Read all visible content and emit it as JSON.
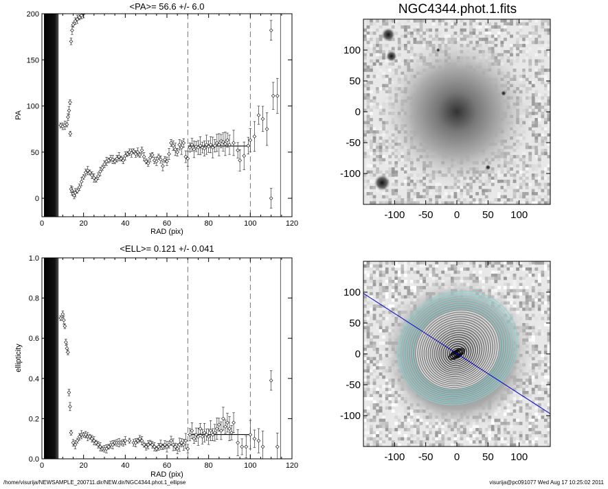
{
  "footer": {
    "path": "/home/visurija/NEWSAMPLE_200711.dir/NEW.dir/NGC4344.phot.1_ellipse",
    "stamp": "visurija@pc091077  Wed Aug 17 10:25:02 2011"
  },
  "chart_data": [
    {
      "type": "scatter",
      "title": "<PA>=  56.6 +/-   6.0",
      "xlabel": "RAD (pix)",
      "ylabel": "PA",
      "xlim": [
        0,
        120
      ],
      "ylim": [
        -20,
        200
      ],
      "xticks": [
        0,
        20,
        40,
        60,
        80,
        100,
        120
      ],
      "yticks": [
        0,
        50,
        100,
        150,
        200
      ],
      "vlines_dashed": [
        70,
        100
      ],
      "vline_solid": 114.5,
      "mean_value": 56.6,
      "mean_range": [
        70,
        100
      ],
      "black_band": [
        1,
        8
      ],
      "points": [
        [
          9,
          79
        ],
        [
          10,
          78
        ],
        [
          11,
          79
        ],
        [
          12,
          80
        ],
        [
          12.5,
          88
        ],
        [
          13,
          95
        ],
        [
          13.5,
          104
        ],
        [
          14,
          170
        ],
        [
          14.5,
          182
        ],
        [
          15,
          188
        ],
        [
          16,
          192
        ],
        [
          17,
          194
        ],
        [
          18,
          196
        ],
        [
          19,
          198
        ],
        [
          20,
          200
        ],
        [
          13.6,
          70
        ],
        [
          14,
          10
        ],
        [
          14.5,
          8
        ],
        [
          15,
          5
        ],
        [
          15.5,
          3
        ],
        [
          16,
          6
        ],
        [
          17,
          8
        ],
        [
          18,
          12
        ],
        [
          19,
          18
        ],
        [
          20,
          23
        ],
        [
          21,
          28
        ],
        [
          22,
          30
        ],
        [
          23,
          28
        ],
        [
          24,
          25
        ],
        [
          25,
          22
        ],
        [
          26,
          20
        ],
        [
          27,
          24
        ],
        [
          28,
          29
        ],
        [
          29,
          33
        ],
        [
          30,
          37
        ],
        [
          31,
          40
        ],
        [
          32,
          41
        ],
        [
          33,
          43
        ],
        [
          34,
          42
        ],
        [
          35,
          40
        ],
        [
          36,
          43
        ],
        [
          37,
          45
        ],
        [
          38,
          43
        ],
        [
          39,
          41
        ],
        [
          40,
          46
        ],
        [
          41,
          48
        ],
        [
          42,
          50
        ],
        [
          43,
          49
        ],
        [
          44,
          51
        ],
        [
          45,
          48
        ],
        [
          46,
          50
        ],
        [
          47,
          47
        ],
        [
          48,
          52
        ],
        [
          49,
          45
        ],
        [
          50,
          40
        ],
        [
          51,
          38
        ],
        [
          52,
          44
        ],
        [
          53,
          47
        ],
        [
          54,
          41
        ],
        [
          55,
          40
        ],
        [
          56,
          45
        ],
        [
          57,
          42
        ],
        [
          58,
          35
        ],
        [
          59,
          42
        ],
        [
          60,
          40
        ],
        [
          61,
          48
        ],
        [
          62,
          60
        ],
        [
          63,
          57
        ],
        [
          64,
          53
        ],
        [
          65,
          50
        ],
        [
          66,
          58
        ],
        [
          67,
          55
        ],
        [
          68,
          60
        ],
        [
          69,
          45
        ],
        [
          70,
          43
        ],
        [
          71,
          55
        ],
        [
          72,
          58
        ],
        [
          73,
          53
        ],
        [
          74,
          56
        ],
        [
          75,
          55
        ],
        [
          76,
          57
        ],
        [
          77,
          55
        ],
        [
          78,
          54
        ],
        [
          79,
          58
        ],
        [
          80,
          56
        ],
        [
          81,
          58
        ],
        [
          82,
          55
        ],
        [
          83,
          57
        ],
        [
          84,
          60
        ],
        [
          85,
          58
        ],
        [
          86,
          62
        ],
        [
          87,
          61
        ],
        [
          88,
          59
        ],
        [
          89,
          63
        ],
        [
          90,
          58
        ],
        [
          92,
          60
        ],
        [
          94,
          52
        ],
        [
          95,
          41
        ],
        [
          97,
          46
        ],
        [
          99,
          57
        ],
        [
          100,
          63
        ],
        [
          102,
          67
        ],
        [
          104,
          90
        ],
        [
          106,
          86
        ],
        [
          108,
          75
        ],
        [
          110,
          182
        ],
        [
          111,
          111
        ],
        [
          113,
          111
        ],
        [
          110,
          0
        ]
      ]
    },
    {
      "type": "scatter",
      "title": "<ELL>= 0.121 +/-  0.041",
      "xlabel": "RAD (pix)",
      "ylabel": "ellipticity",
      "xlim": [
        0,
        120
      ],
      "ylim": [
        0,
        1.0
      ],
      "xticks": [
        0,
        20,
        40,
        60,
        80,
        100,
        120
      ],
      "yticks": [
        0.0,
        0.2,
        0.4,
        0.6,
        0.8,
        1.0
      ],
      "vlines_dashed": [
        70,
        100
      ],
      "vline_solid": 114.5,
      "mean_value": 0.121,
      "mean_range": [
        70,
        100
      ],
      "black_band": [
        1,
        8
      ],
      "points": [
        [
          9,
          0.7
        ],
        [
          10,
          0.72
        ],
        [
          10.5,
          0.69
        ],
        [
          11,
          0.66
        ],
        [
          11.5,
          0.58
        ],
        [
          12,
          0.55
        ],
        [
          12.5,
          0.53
        ],
        [
          13,
          0.33
        ],
        [
          13.5,
          0.26
        ],
        [
          14,
          0.13
        ],
        [
          15,
          0.08
        ],
        [
          16,
          0.07
        ],
        [
          17,
          0.09
        ],
        [
          18,
          0.11
        ],
        [
          19,
          0.12
        ],
        [
          20,
          0.12
        ],
        [
          21,
          0.12
        ],
        [
          22,
          0.11
        ],
        [
          23,
          0.11
        ],
        [
          24,
          0.1
        ],
        [
          25,
          0.09
        ],
        [
          26,
          0.08
        ],
        [
          27,
          0.07
        ],
        [
          28,
          0.06
        ],
        [
          29,
          0.05
        ],
        [
          30,
          0.05
        ],
        [
          31,
          0.05
        ],
        [
          32,
          0.06
        ],
        [
          33,
          0.07
        ],
        [
          34,
          0.07
        ],
        [
          35,
          0.08
        ],
        [
          36,
          0.08
        ],
        [
          37,
          0.08
        ],
        [
          38,
          0.08
        ],
        [
          39,
          0.08
        ],
        [
          40,
          0.09
        ],
        [
          42,
          0.09
        ],
        [
          44,
          0.08
        ],
        [
          45,
          0.08
        ],
        [
          46,
          0.09
        ],
        [
          47,
          0.1
        ],
        [
          48,
          0.09
        ],
        [
          49,
          0.07
        ],
        [
          50,
          0.06
        ],
        [
          51,
          0.07
        ],
        [
          52,
          0.08
        ],
        [
          53,
          0.07
        ],
        [
          54,
          0.06
        ],
        [
          55,
          0.05
        ],
        [
          56,
          0.06
        ],
        [
          57,
          0.07
        ],
        [
          58,
          0.06
        ],
        [
          59,
          0.07
        ],
        [
          60,
          0.06
        ],
        [
          61,
          0.07
        ],
        [
          62,
          0.09
        ],
        [
          63,
          0.07
        ],
        [
          64,
          0.06
        ],
        [
          65,
          0.05
        ],
        [
          66,
          0.07
        ],
        [
          67,
          0.08
        ],
        [
          68,
          0.07
        ],
        [
          69,
          0.09
        ],
        [
          70,
          0.05
        ],
        [
          71,
          0.12
        ],
        [
          72,
          0.14
        ],
        [
          73,
          0.1
        ],
        [
          74,
          0.12
        ],
        [
          75,
          0.11
        ],
        [
          76,
          0.15
        ],
        [
          77,
          0.11
        ],
        [
          78,
          0.13
        ],
        [
          79,
          0.12
        ],
        [
          80,
          0.11
        ],
        [
          81,
          0.14
        ],
        [
          82,
          0.12
        ],
        [
          83,
          0.13
        ],
        [
          84,
          0.15
        ],
        [
          85,
          0.17
        ],
        [
          86,
          0.14
        ],
        [
          87,
          0.2
        ],
        [
          88,
          0.16
        ],
        [
          89,
          0.18
        ],
        [
          90,
          0.15
        ],
        [
          91,
          0.13
        ],
        [
          92,
          0.18
        ],
        [
          94,
          0.08
        ],
        [
          96,
          0.06
        ],
        [
          98,
          0.06
        ],
        [
          100,
          0.12
        ],
        [
          102,
          0.1
        ],
        [
          104,
          0.09
        ],
        [
          106,
          0.06
        ],
        [
          110,
          0.39
        ],
        [
          113,
          0.06
        ]
      ]
    },
    {
      "type": "heatmap",
      "title": "NGC4344.phot.1.fits",
      "xlim": [
        -150,
        150
      ],
      "ylim": [
        -150,
        150
      ],
      "xticks": [
        -100,
        -50,
        0,
        50,
        100
      ],
      "yticks": [
        -100,
        -50,
        0,
        50,
        100
      ]
    },
    {
      "type": "heatmap",
      "title": "",
      "xlim": [
        -150,
        150
      ],
      "ylim": [
        -150,
        150
      ],
      "xticks": [
        -100,
        -50,
        0,
        50,
        100
      ],
      "yticks": [
        -100,
        -50,
        0,
        50,
        100
      ],
      "pa_line_color": "#0000cc",
      "ring_color": "#7fd7d7"
    }
  ]
}
